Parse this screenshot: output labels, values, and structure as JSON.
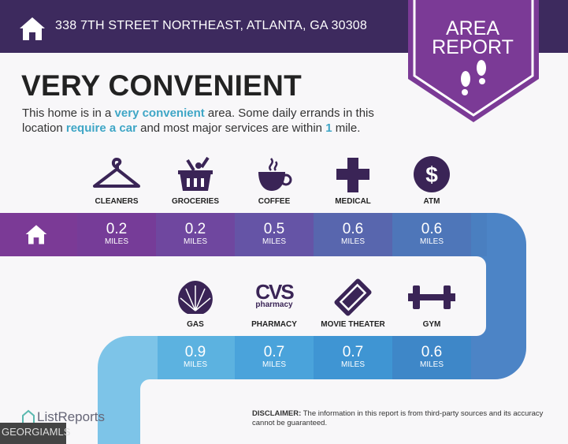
{
  "header": {
    "address": "338 7TH STREET NORTHEAST, ATLANTA, GA 30308",
    "badge_line1": "AREA",
    "badge_line2": "REPORT"
  },
  "main": {
    "title": "VERY CONVENIENT",
    "desc": {
      "p1": "This home is in a ",
      "h1": "very convenient",
      "p2": " area. Some daily errands in this location ",
      "h2": "require a car",
      "p3": " and most major services are within ",
      "h3": "1",
      "p4": " mile."
    }
  },
  "amenities_row1": [
    {
      "label": "CLEANERS",
      "value": "0.2",
      "unit": "MILES",
      "icon": "hanger-icon"
    },
    {
      "label": "GROCERIES",
      "value": "0.2",
      "unit": "MILES",
      "icon": "basket-icon"
    },
    {
      "label": "COFFEE",
      "value": "0.5",
      "unit": "MILES",
      "icon": "coffee-icon"
    },
    {
      "label": "MEDICAL",
      "value": "0.6",
      "unit": "MILES",
      "icon": "medical-cross-icon"
    },
    {
      "label": "ATM",
      "value": "0.6",
      "unit": "MILES",
      "icon": "dollar-icon"
    }
  ],
  "amenities_row2": [
    {
      "label": "GAS",
      "value": "0.9",
      "unit": "MILES",
      "icon": "shell-icon"
    },
    {
      "label": "PHARMACY",
      "value": "0.7",
      "unit": "MILES",
      "icon": "cvs-logo",
      "logo_text": "CVS",
      "logo_sub": "pharmacy"
    },
    {
      "label": "MOVIE THEATER",
      "value": "0.7",
      "unit": "MILES",
      "icon": "ticket-icon"
    },
    {
      "label": "GYM",
      "value": "0.6",
      "unit": "MILES",
      "icon": "dumbbell-icon"
    }
  ],
  "footer": {
    "brand": "ListReports",
    "mls": "GEORGIAMLS",
    "disclaimer_label": "DISCLAIMER:",
    "disclaimer": " The information in this report is from third-party sources and its accuracy cannot be guaranteed."
  },
  "colors": {
    "header": "#3d2a5e",
    "badge": "#7b3a96",
    "icon": "#3a2456",
    "highlight": "#3fa6c6"
  }
}
